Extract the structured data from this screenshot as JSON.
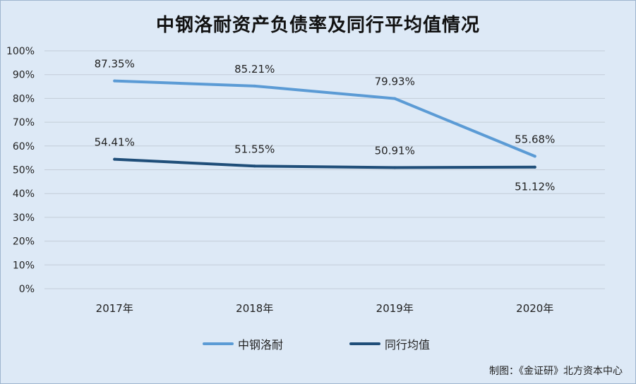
{
  "title": "中钢洛耐资产负债率及同行平均值情况",
  "credit": "制图：《金证研》北方资本中心",
  "chart_data": {
    "type": "line",
    "categories": [
      "2017年",
      "2018年",
      "2019年",
      "2020年"
    ],
    "ylim": [
      0,
      100
    ],
    "y_ticks": [
      "0%",
      "10%",
      "20%",
      "30%",
      "40%",
      "50%",
      "60%",
      "70%",
      "80%",
      "90%",
      "100%"
    ],
    "grid": true,
    "legend_position": "bottom",
    "series": [
      {
        "name": "中钢洛耐",
        "color": "#5b9bd5",
        "values": [
          87.35,
          85.21,
          79.93,
          55.68
        ],
        "labels": [
          "87.35%",
          "85.21%",
          "79.93%",
          "55.68%"
        ]
      },
      {
        "name": "同行均值",
        "color": "#1f4e79",
        "values": [
          54.41,
          51.55,
          50.91,
          51.12
        ],
        "labels": [
          "54.41%",
          "51.55%",
          "50.91%",
          "51.12%"
        ]
      }
    ]
  }
}
